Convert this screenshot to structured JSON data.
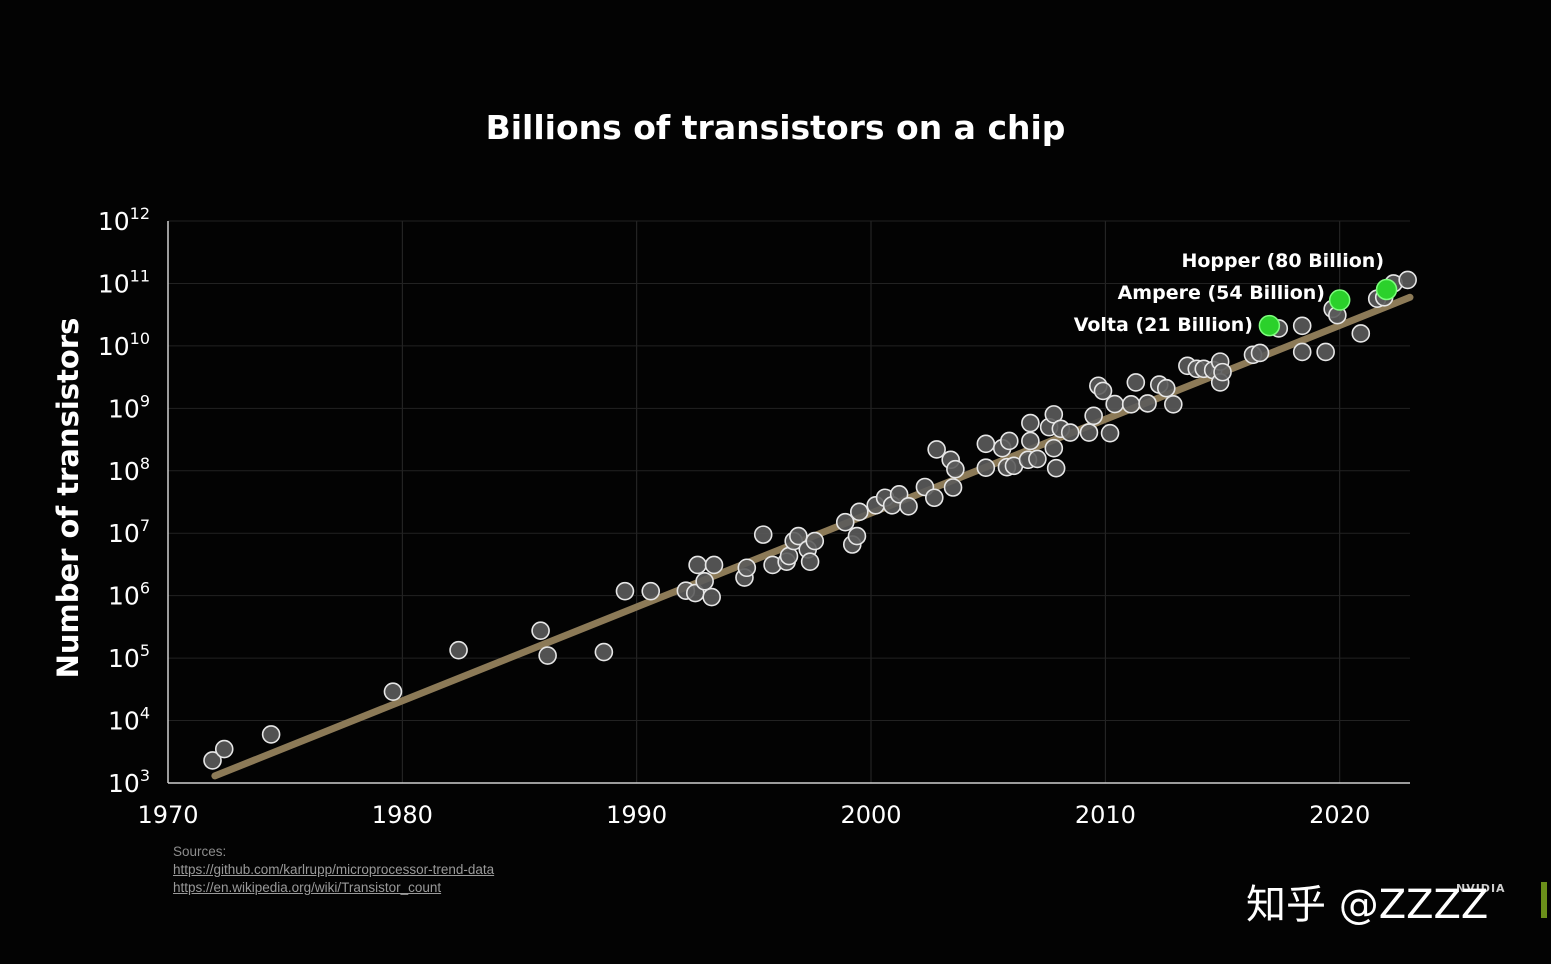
{
  "chart_data": {
    "type": "scatter",
    "title": "Billions of transistors on a chip",
    "xlabel": "",
    "ylabel": "Number of transistors",
    "yscale": "log",
    "xlim": [
      1970,
      2023
    ],
    "ylim": [
      1000,
      1000000000000
    ],
    "xticks": [
      1970,
      1980,
      1990,
      2000,
      2010,
      2020
    ],
    "xtick_labels": [
      "1970",
      "1980",
      "1990",
      "2000",
      "2010",
      "2020"
    ],
    "yticks": [
      1000,
      10000,
      100000,
      1000000,
      10000000,
      100000000,
      1000000000,
      10000000000,
      100000000000,
      1000000000000
    ],
    "ytick_labels": [
      {
        "base": "10",
        "exp": "3"
      },
      {
        "base": "10",
        "exp": "4"
      },
      {
        "base": "10",
        "exp": "5"
      },
      {
        "base": "10",
        "exp": "6"
      },
      {
        "base": "10",
        "exp": "7"
      },
      {
        "base": "10",
        "exp": "8"
      },
      {
        "base": "10",
        "exp": "9"
      },
      {
        "base": "10",
        "exp": "10"
      },
      {
        "base": "10",
        "exp": "11"
      },
      {
        "base": "10",
        "exp": "12"
      }
    ],
    "grid": "vertical",
    "trend_line": {
      "x": [
        1972,
        2023
      ],
      "y": [
        1300,
        60000000000
      ],
      "color": "#8c7a57"
    },
    "series": [
      {
        "color": "#5b5b5b",
        "points": [
          [
            1971.9,
            2300
          ],
          [
            1972.4,
            3500
          ],
          [
            1974.4,
            6000
          ],
          [
            1979.6,
            29000
          ],
          [
            1982.4,
            134000
          ],
          [
            1985.9,
            275000
          ],
          [
            1986.2,
            110000
          ],
          [
            1988.6,
            125000
          ],
          [
            1989.5,
            1180000
          ],
          [
            1990.6,
            1180000
          ],
          [
            1992.1,
            1200000
          ],
          [
            1992.5,
            1100000
          ],
          [
            1992.6,
            3100000
          ],
          [
            1992.9,
            1700000
          ],
          [
            1993.2,
            950000
          ],
          [
            1993.3,
            3100000
          ],
          [
            1994.6,
            1950000
          ],
          [
            1994.7,
            2800000
          ],
          [
            1995.4,
            9500000
          ],
          [
            1995.8,
            3100000
          ],
          [
            1996.4,
            3500000
          ],
          [
            1996.5,
            4300000
          ],
          [
            1996.7,
            7500000
          ],
          [
            1996.9,
            9000000
          ],
          [
            1997.3,
            5500000
          ],
          [
            1997.4,
            3500000
          ],
          [
            1997.6,
            7500000
          ],
          [
            1998.9,
            15000000
          ],
          [
            1999.2,
            6600000
          ],
          [
            1999.4,
            9000000
          ],
          [
            1999.5,
            22000000
          ],
          [
            2000.2,
            28000000
          ],
          [
            2000.6,
            37000000
          ],
          [
            2000.9,
            28000000
          ],
          [
            2001.2,
            42000000
          ],
          [
            2001.6,
            27000000
          ],
          [
            2002.3,
            55000000
          ],
          [
            2002.7,
            37000000
          ],
          [
            2002.8,
            220000000
          ],
          [
            2003.4,
            150000000
          ],
          [
            2003.5,
            54000000
          ],
          [
            2003.6,
            106000000
          ],
          [
            2004.9,
            112000000
          ],
          [
            2004.9,
            270000000
          ],
          [
            2005.6,
            230000000
          ],
          [
            2005.8,
            114000000
          ],
          [
            2005.9,
            300000000
          ],
          [
            2006.1,
            120000000
          ],
          [
            2006.7,
            150000000
          ],
          [
            2006.8,
            300000000
          ],
          [
            2006.8,
            582000000
          ],
          [
            2007.1,
            155000000
          ],
          [
            2007.6,
            500000000
          ],
          [
            2007.8,
            800000000
          ],
          [
            2007.9,
            110000000
          ],
          [
            2007.8,
            230000000
          ],
          [
            2008.1,
            470000000
          ],
          [
            2008.5,
            410000000
          ],
          [
            2009.3,
            410000000
          ],
          [
            2009.5,
            760000000
          ],
          [
            2009.7,
            2300000000
          ],
          [
            2009.9,
            1900000000
          ],
          [
            2010.2,
            400000000
          ],
          [
            2010.4,
            1170000000
          ],
          [
            2011.1,
            1160000000
          ],
          [
            2011.3,
            2600000000
          ],
          [
            2011.8,
            1200000000
          ],
          [
            2012.3,
            2400000000
          ],
          [
            2012.6,
            2100000000
          ],
          [
            2012.9,
            1160000000
          ],
          [
            2013.5,
            4800000000
          ],
          [
            2013.9,
            4300000000
          ],
          [
            2014.2,
            4300000000
          ],
          [
            2014.6,
            4100000000
          ],
          [
            2014.9,
            5600000000
          ],
          [
            2014.9,
            2600000000
          ],
          [
            2015.0,
            3800000000
          ],
          [
            2016.3,
            7200000000
          ],
          [
            2016.6,
            7700000000
          ],
          [
            2017.4,
            19000000000
          ],
          [
            2018.4,
            21000000000
          ],
          [
            2018.4,
            8000000000
          ],
          [
            2019.4,
            8000000000
          ],
          [
            2019.7,
            39000000000
          ],
          [
            2019.9,
            31000000000
          ],
          [
            2020.9,
            15800000000
          ],
          [
            2021.6,
            57000000000
          ],
          [
            2021.9,
            60000000000
          ],
          [
            2022.3,
            100000000000
          ],
          [
            2022.9,
            114000000000
          ]
        ]
      },
      {
        "color": "#2bd12b",
        "points": [
          [
            2017.0,
            21100000000
          ],
          [
            2020.0,
            54200000000
          ],
          [
            2022.0,
            80000000000
          ]
        ]
      }
    ],
    "annotations": [
      {
        "text": "Hopper (80 Billion)"
      },
      {
        "text": "Ampere (54 Billion)"
      },
      {
        "text": "Volta (21 Billion)"
      }
    ]
  },
  "sources": {
    "label": "Sources:",
    "links": [
      "https://github.com/karlrupp/microprocessor-trend-data",
      "https://en.wikipedia.org/wiki/Transistor_count"
    ]
  },
  "watermark": "知乎 @ZZZZ",
  "logo": "NVIDIA"
}
